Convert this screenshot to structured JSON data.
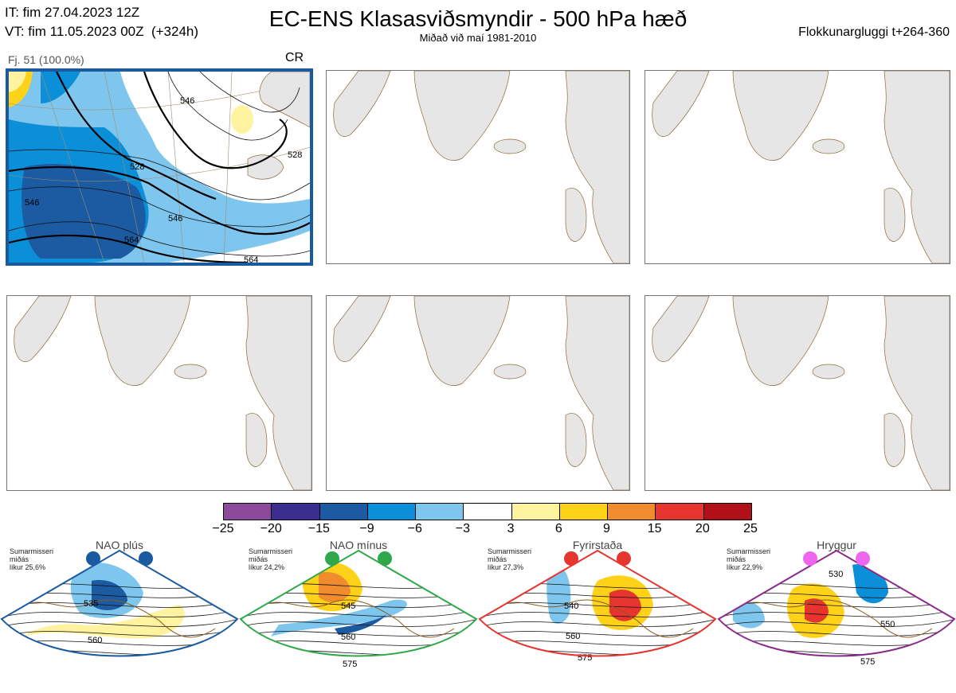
{
  "header": {
    "it": "IT: fim 27.04.2023 12Z",
    "vt": "VT: fim 11.05.2023 00Z  (+324h)",
    "title": "EC-ENS Klasasviðsmyndir - 500 hPa hæð",
    "subtitle": "Miðað við maí 1981-2010",
    "window": "Flokkunargluggi t+264-360"
  },
  "main_panel": {
    "label": "Fj. 51 (100.0%)",
    "regime_code": "CR",
    "contour_labels": [
      "528",
      "546",
      "546",
      "564",
      "564",
      "546",
      "528"
    ]
  },
  "colorbar": {
    "ticks": [
      "−25",
      "−20",
      "−15",
      "−9",
      "−6",
      "−3",
      "3",
      "6",
      "9",
      "15",
      "20",
      "25"
    ],
    "colors": [
      "#8b4a9c",
      "#3c2e8e",
      "#1c5aa2",
      "#0a8fd8",
      "#7fc6ee",
      "#ffffff",
      "#fff3a0",
      "#ffd21a",
      "#f08c2e",
      "#e6342f",
      "#b01018"
    ]
  },
  "regimes": [
    {
      "name": "NAO plús",
      "info": "Sumarmisseri\nmiðás\nlíkur 25,6%",
      "color": "#1a5aa0",
      "dot_color": "#1a5aa0",
      "labels": [
        "535",
        "560"
      ]
    },
    {
      "name": "NAO mínus",
      "info": "Sumarmisseri\nmiðás\nlíkur 24,2%",
      "color": "#2ea84a",
      "dot_color": "#2ea84a",
      "labels": [
        "545",
        "560",
        "575"
      ]
    },
    {
      "name": "Fyrirstaða",
      "info": "Sumarmisseri\nmiðás\nlíkur 27,3%",
      "color": "#e6342f",
      "dot_color": "#e6342f",
      "labels": [
        "540",
        "560",
        "575"
      ]
    },
    {
      "name": "Hryggur",
      "info": "Sumarmisseri\nmiðás\nlíkur 22,9%",
      "color": "#8a2a8a",
      "dot_color": "#ee66ee",
      "labels": [
        "530",
        "550",
        "575"
      ]
    }
  ]
}
